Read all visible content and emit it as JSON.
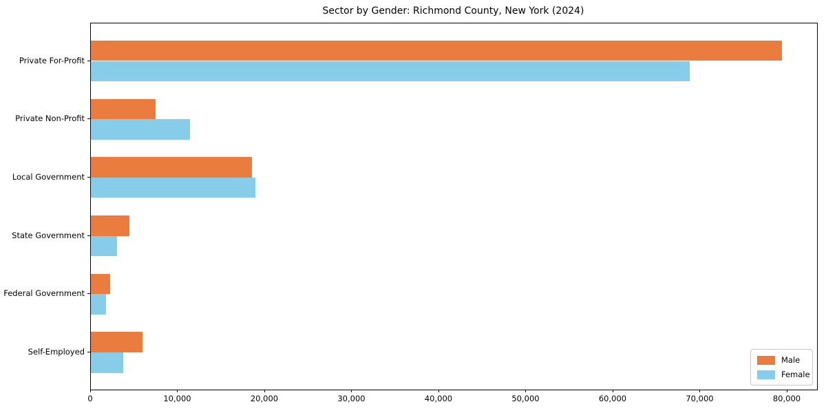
{
  "title": "Sector by Gender: Richmond County, New York (2024)",
  "chart_data": {
    "type": "bar",
    "orientation": "horizontal",
    "title": "Sector by Gender: Richmond County, New York (2024)",
    "categories": [
      "Private For-Profit",
      "Private Non-Profit",
      "Local Government",
      "State Government",
      "Federal Government",
      "Self-Employed"
    ],
    "series": [
      {
        "name": "Male",
        "color": "#e97c3e",
        "values": [
          79400,
          7400,
          18500,
          4400,
          2200,
          5900
        ]
      },
      {
        "name": "Female",
        "color": "#87cde9",
        "values": [
          68800,
          11400,
          18900,
          3000,
          1700,
          3700
        ]
      }
    ],
    "xlabel": "",
    "ylabel": "",
    "xlim": [
      0,
      83400
    ],
    "x_tick_step": 10000,
    "x_tick_labels": [
      "0",
      "10,000",
      "20,000",
      "30,000",
      "40,000",
      "50,000",
      "60,000",
      "70,000",
      "80,000"
    ],
    "grid": false,
    "legend_position": "lower right",
    "legend_labels": [
      "Male",
      "Female"
    ]
  }
}
